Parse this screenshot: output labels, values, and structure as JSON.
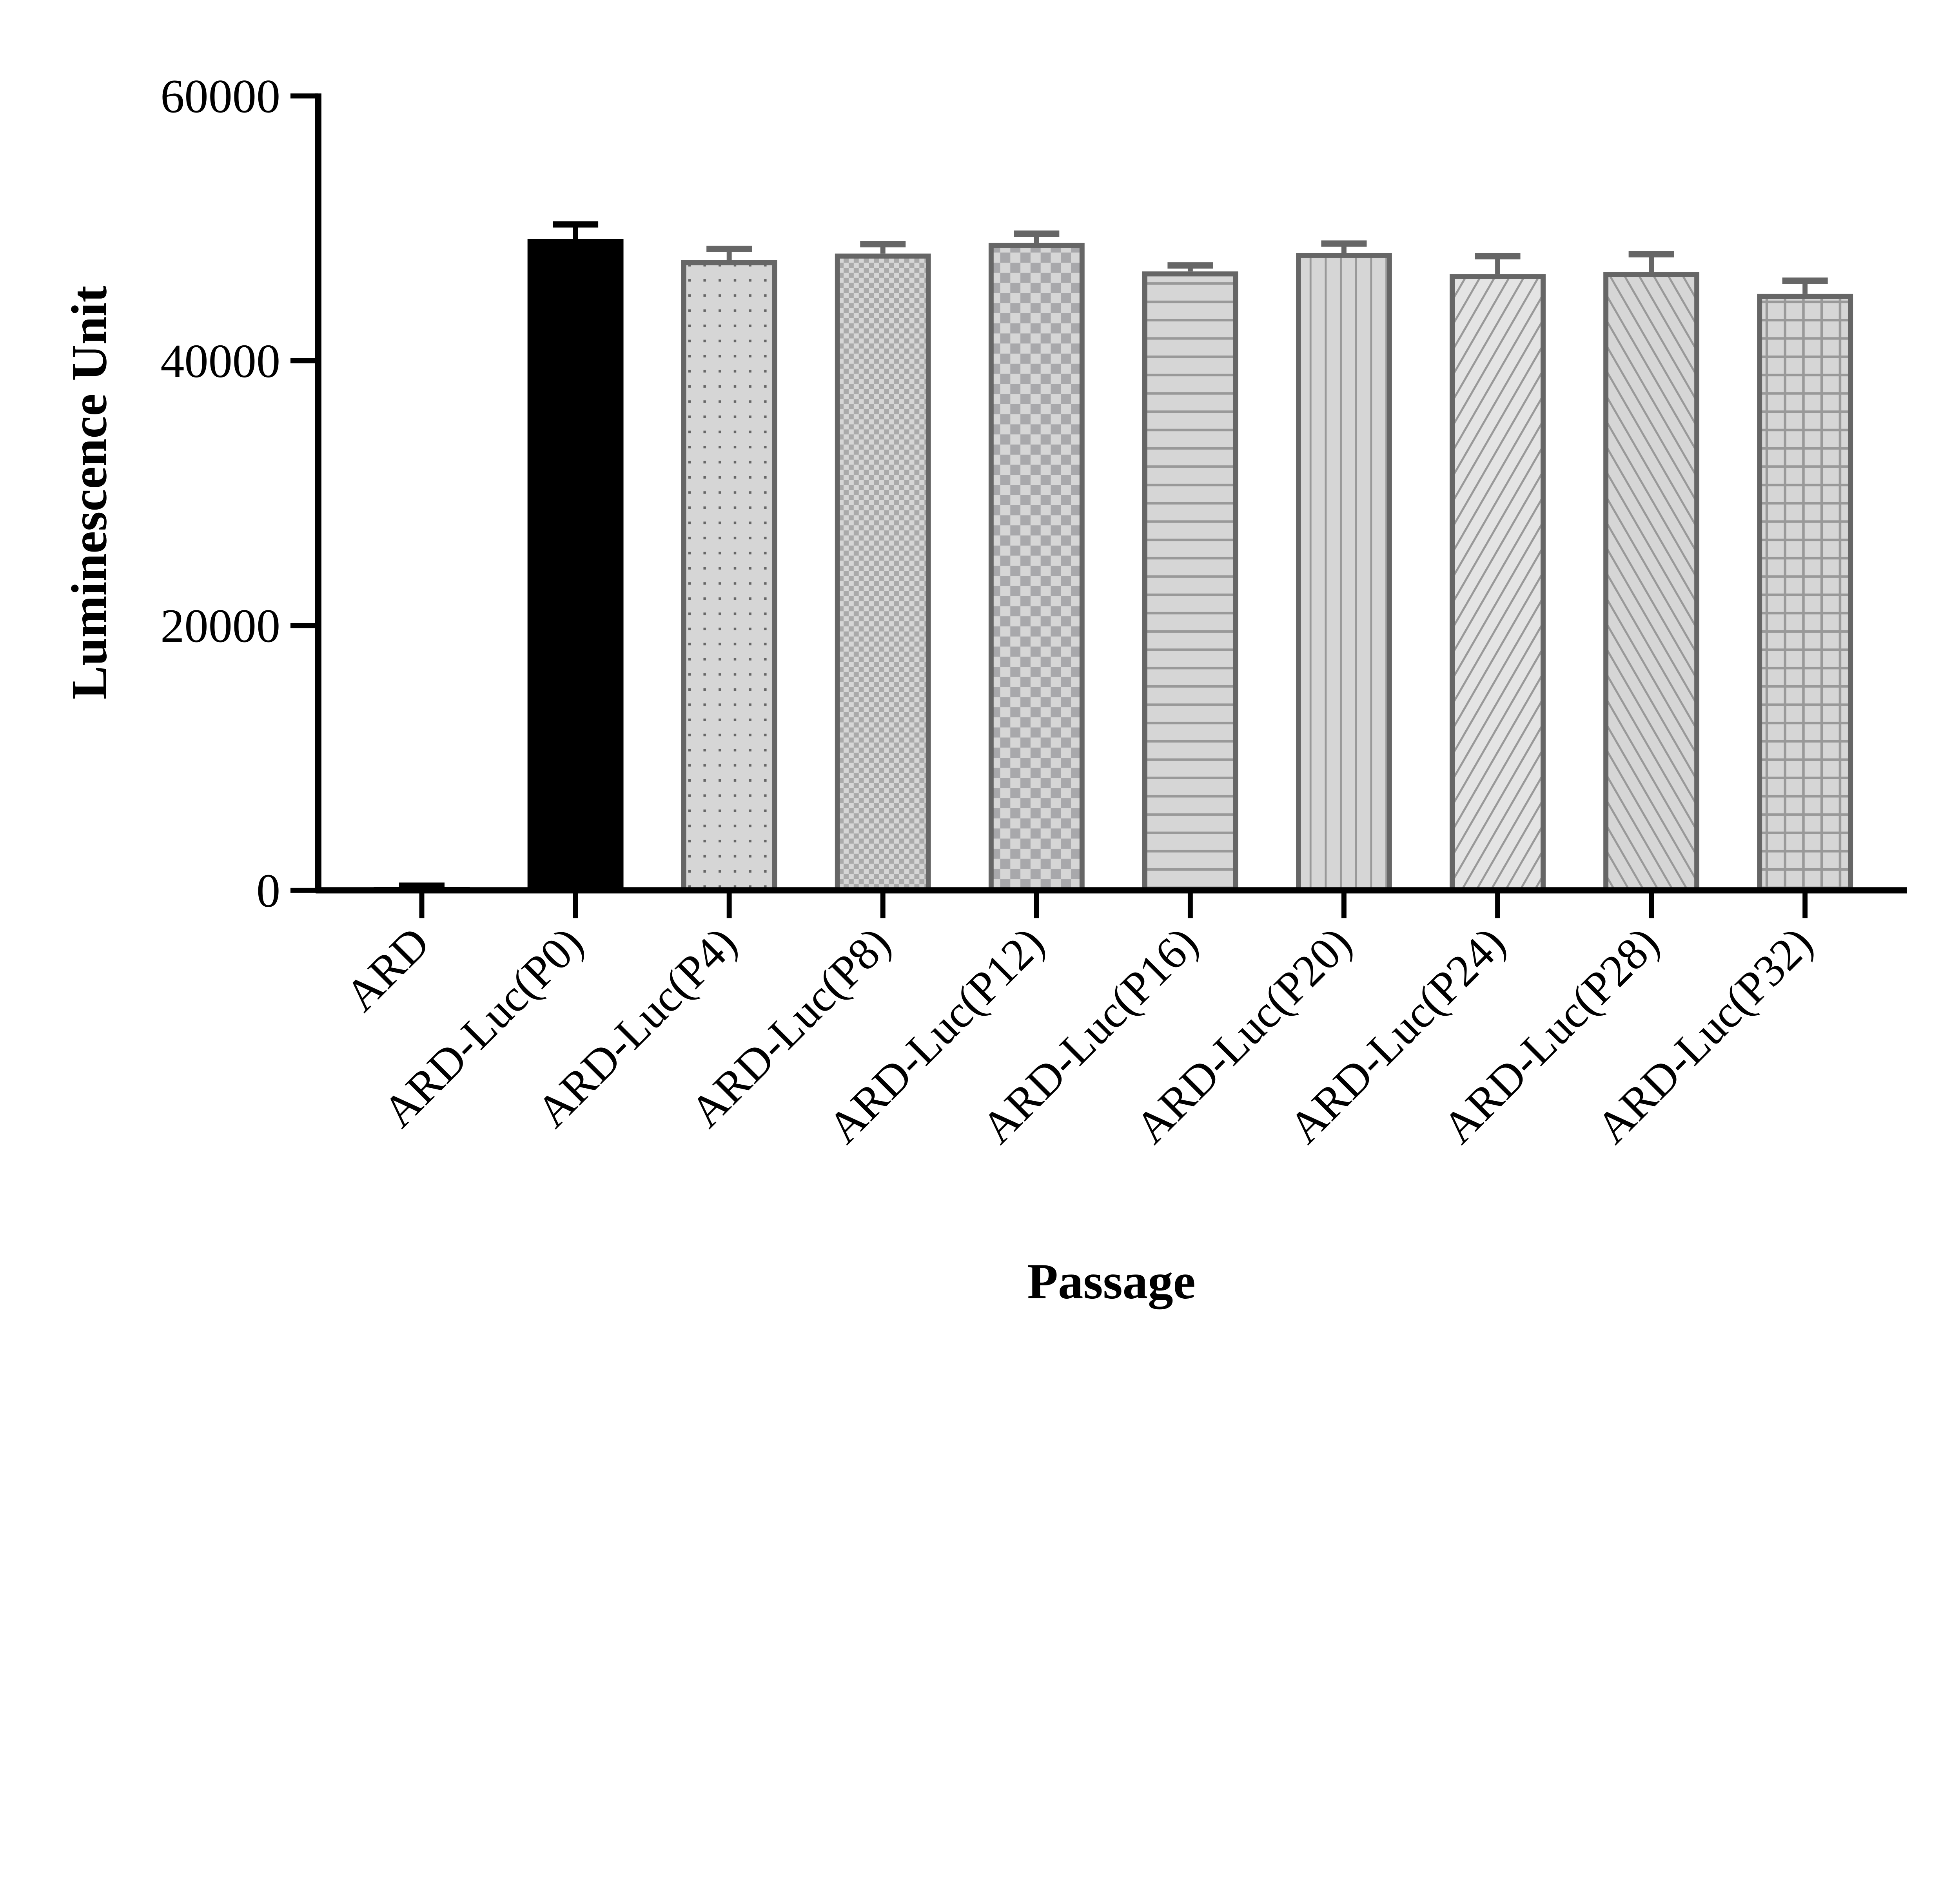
{
  "chart_data": {
    "type": "bar",
    "title": "",
    "xlabel": "Passage",
    "ylabel": "Luminescence Unit",
    "ylim": [
      0,
      60000
    ],
    "yticks": [
      "0",
      "20000",
      "40000",
      "60000"
    ],
    "grid": false,
    "categories": [
      "ARD",
      "ARD-Luc(P0)",
      "ARD-Luc(P4)",
      "ARD-Luc(P8)",
      "ARD-Luc(P12)",
      "ARD-Luc(P16)",
      "ARD-Luc(P20)",
      "ARD-Luc(P24)",
      "ARD-Luc(P28)",
      "ARD-Luc(P32)"
    ],
    "values": [
      250,
      49200,
      47600,
      48100,
      48900,
      46750,
      48150,
      46550,
      46700,
      45050
    ],
    "error_upper": [
      350,
      50300,
      48450,
      48800,
      49600,
      47200,
      48850,
      47900,
      48050,
      46050
    ],
    "fills": [
      "black-solid",
      "black-solid",
      "dots",
      "fine-checker",
      "checker",
      "horizontal-lines",
      "vertical-lines",
      "diagonal-up",
      "diagonal-down",
      "grid"
    ],
    "colors": {
      "axis": "#000000",
      "bar_outline": "#666666",
      "bar_fill": "#d6d6d6",
      "pattern": "#999999"
    }
  }
}
